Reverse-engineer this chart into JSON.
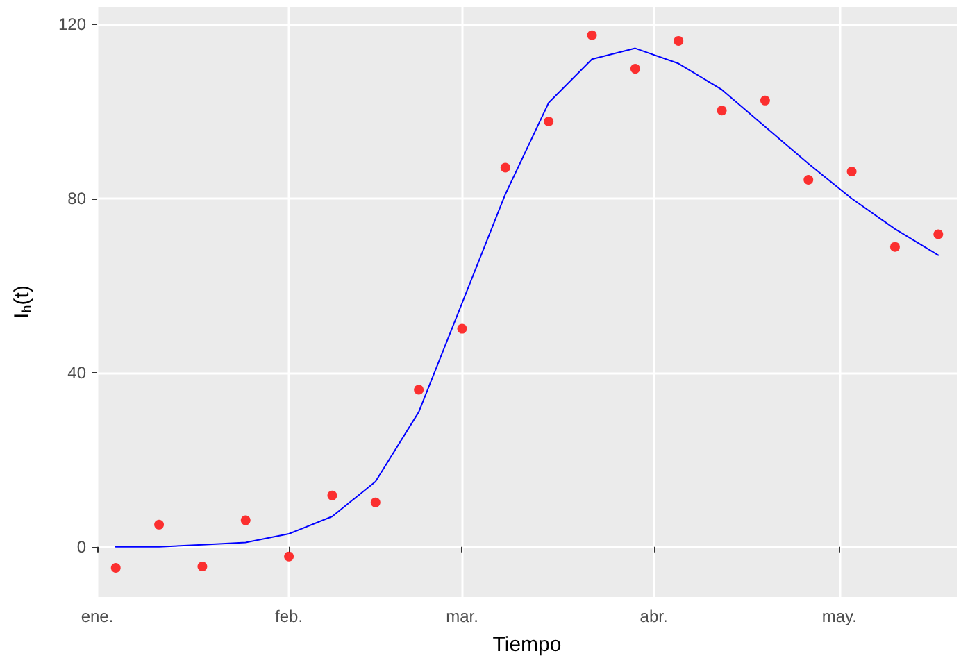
{
  "chart_data": {
    "type": "scatter",
    "xlabel": "Tiempo",
    "ylabel": "I$_{h}$(t)",
    "x": [
      "--01-04",
      "--01-11",
      "--01-18",
      "--01-25",
      "--02-01",
      "--02-08",
      "--02-15",
      "--02-22",
      "--03-01",
      "--03-08",
      "--03-15",
      "--03-22",
      "--03-29",
      "--04-05",
      "--04-12",
      "--04-19",
      "--04-26",
      "--05-03",
      "--05-10",
      "--05-17"
    ],
    "series": [
      {
        "color": "#ff0000",
        "marker": "circle",
        "values": [
          -4.8,
          5.1,
          -4.5,
          6.1,
          -2.2,
          11.8,
          10.2,
          36.1,
          50.1,
          87.1,
          97.7,
          117.5,
          109.8,
          116.2,
          100.2,
          102.5,
          84.3,
          86.2,
          68.9,
          71.8
        ]
      },
      {
        "type": "line",
        "color": "#0000ff",
        "marker": "none",
        "line_style": "solid",
        "values": [
          0,
          0,
          0.5,
          1,
          3,
          7,
          15,
          31,
          56,
          81,
          102,
          112,
          114.5,
          111,
          105,
          96.5,
          88,
          80,
          73,
          67
        ]
      }
    ],
    "xlim": [
      "--01-01",
      "--05-20"
    ],
    "xticks": [
      {
        "value": "--01-01",
        "label": "ene."
      },
      {
        "value": "--02-01",
        "label": "feb."
      },
      {
        "value": "--03-01",
        "label": "mar."
      },
      {
        "value": "--04-01",
        "label": "abr."
      },
      {
        "value": "--05-01",
        "label": "may."
      }
    ],
    "ylim": [
      -11.5,
      124
    ],
    "yticks": [
      0,
      40,
      80,
      120
    ],
    "grid": true
  }
}
